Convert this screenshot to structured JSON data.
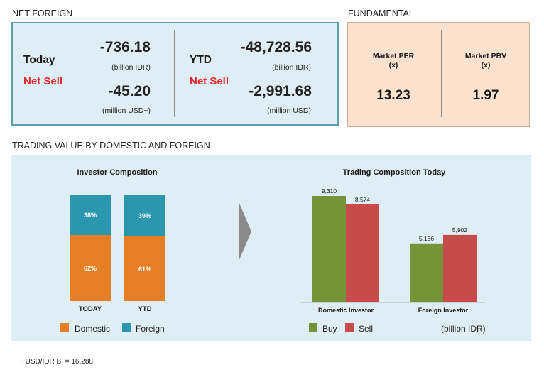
{
  "net_foreign": {
    "title": "NET FOREIGN",
    "today": {
      "label": "Today",
      "status": "Net Sell",
      "value_idr": "-736.18",
      "unit_idr": "(billion IDR)",
      "value_usd": "-45.20",
      "unit_usd": "(million USD~)"
    },
    "ytd": {
      "label": "YTD",
      "status": "Net Sell",
      "value_idr": "-48,728.56",
      "unit_idr": "(billion IDR)",
      "value_usd": "-2,991.68",
      "unit_usd": "(million USD)"
    }
  },
  "fundamental": {
    "title": "FUNDAMENTAL",
    "per": {
      "label": "Market PER",
      "unit": "(x)",
      "value": "13.23"
    },
    "pbv": {
      "label": "Market PBV",
      "unit": "(x)",
      "value": "1.97"
    }
  },
  "trading": {
    "title": "TRADING VALUE BY DOMESTIC AND FOREIGN",
    "unit_note": "(billion IDR)"
  },
  "footnote": "~ USD/IDR BI = 16,288",
  "colors": {
    "domestic": "#e57e24",
    "foreign": "#2a97ae",
    "buy": "#75943a",
    "sell": "#c84b4b",
    "net_sell": "#e0292b"
  },
  "chart_data": [
    {
      "type": "bar",
      "stacked": true,
      "title": "Investor Composition",
      "categories": [
        "TODAY",
        "YTD"
      ],
      "series": [
        {
          "name": "Domestic",
          "values": [
            62,
            61
          ],
          "labels": [
            "62%",
            "61%"
          ]
        },
        {
          "name": "Foreign",
          "values": [
            38,
            39
          ],
          "labels": [
            "38%",
            "39%"
          ]
        }
      ],
      "ylim": [
        0,
        100
      ],
      "grid": false,
      "legend": "bottom"
    },
    {
      "type": "bar",
      "title": "Trading Composition Today",
      "categories": [
        "Domestic Investor",
        "Foreign Investor"
      ],
      "series": [
        {
          "name": "Buy",
          "values": [
            9310,
            5166
          ],
          "labels": [
            "9,310",
            "5,166"
          ]
        },
        {
          "name": "Sell",
          "values": [
            8574,
            5902
          ],
          "labels": [
            "8,574",
            "5,902"
          ]
        }
      ],
      "ylim": [
        0,
        10000
      ],
      "grid": false,
      "legend": "bottom"
    }
  ]
}
